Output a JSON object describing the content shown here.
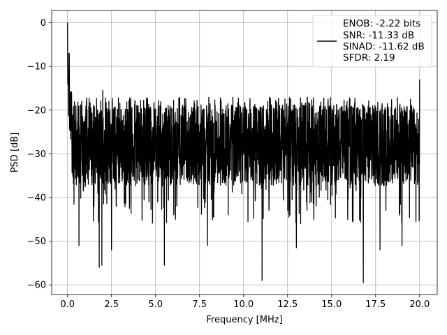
{
  "chart_data": {
    "type": "line",
    "title": "",
    "xlabel": "Frequency [MHz]",
    "ylabel": "PSD [dB]",
    "xlim": [
      -0.9,
      21.0
    ],
    "ylim": [
      -62.2,
      2.8
    ],
    "xticks": [
      0.0,
      2.5,
      5.0,
      7.5,
      10.0,
      12.5,
      15.0,
      17.5,
      20.0
    ],
    "xtick_labels": [
      "0.0",
      "2.5",
      "5.0",
      "7.5",
      "10.0",
      "12.5",
      "15.0",
      "17.5",
      "20.0"
    ],
    "yticks": [
      0,
      -10,
      -20,
      -30,
      -40,
      -50,
      -60
    ],
    "ytick_labels": [
      "0",
      "−10",
      "−20",
      "−30",
      "−40",
      "−50",
      "−60"
    ],
    "grid": true,
    "legend": {
      "placement": "top-right",
      "entries": [
        "ENOB: -2.22 bits",
        "SNR: -11.33 dB",
        "SINAD: -11.62 dB",
        "SFDR: 2.19"
      ]
    },
    "series": [
      {
        "color": "#000000",
        "x_range": [
          0.0,
          20.0
        ],
        "peak": {
          "x": 0.0,
          "y": 0.0
        },
        "noise_floor_median": -28,
        "noise_band_upper": -20,
        "noise_band_lower": -36,
        "dips": [
          {
            "x": 0.65,
            "y": -51
          },
          {
            "x": 1.8,
            "y": -56
          },
          {
            "x": 1.95,
            "y": -55.5
          },
          {
            "x": 2.5,
            "y": -52
          },
          {
            "x": 5.5,
            "y": -55.5
          },
          {
            "x": 7.95,
            "y": -51
          },
          {
            "x": 11.05,
            "y": -59
          },
          {
            "x": 13.0,
            "y": -51.5
          },
          {
            "x": 16.8,
            "y": -59.5
          },
          {
            "x": 17.75,
            "y": -52
          },
          {
            "x": 19.0,
            "y": -51
          }
        ],
        "spikes": [
          {
            "x": 0.1,
            "y": -7
          },
          {
            "x": 2.0,
            "y": -15.5
          },
          {
            "x": 20.0,
            "y": -13
          }
        ]
      }
    ]
  }
}
